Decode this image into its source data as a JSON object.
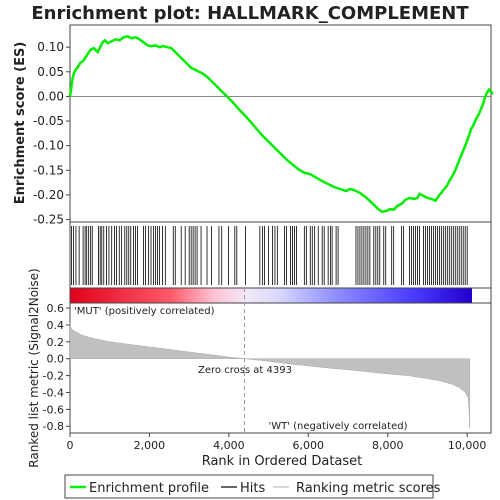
{
  "chart_data": {
    "type": "line",
    "title": "Enrichment plot: HALLMARK_COMPLEMENT",
    "panels": {
      "enrichment": {
        "ylabel": "Enrichment score (ES)",
        "xlim": [
          0,
          10600
        ],
        "ylim": [
          -0.255,
          0.145
        ],
        "yticks": [
          "0.10",
          "0.05",
          "0.00",
          "-0.05",
          "-0.10",
          "-0.15",
          "-0.20",
          "-0.25"
        ],
        "ytick_values": [
          0.1,
          0.05,
          0.0,
          -0.05,
          -0.1,
          -0.15,
          -0.2,
          -0.25
        ],
        "series_color": "#00ee00",
        "curve": [
          [
            0,
            0.0
          ],
          [
            30,
            0.015
          ],
          [
            60,
            0.035
          ],
          [
            100,
            0.048
          ],
          [
            150,
            0.055
          ],
          [
            200,
            0.06
          ],
          [
            260,
            0.068
          ],
          [
            330,
            0.072
          ],
          [
            400,
            0.08
          ],
          [
            460,
            0.088
          ],
          [
            520,
            0.095
          ],
          [
            600,
            0.098
          ],
          [
            700,
            0.09
          ],
          [
            760,
            0.1
          ],
          [
            820,
            0.11
          ],
          [
            880,
            0.114
          ],
          [
            950,
            0.108
          ],
          [
            1050,
            0.112
          ],
          [
            1150,
            0.116
          ],
          [
            1250,
            0.114
          ],
          [
            1350,
            0.12
          ],
          [
            1450,
            0.122
          ],
          [
            1550,
            0.118
          ],
          [
            1650,
            0.12
          ],
          [
            1750,
            0.116
          ],
          [
            1850,
            0.11
          ],
          [
            1950,
            0.104
          ],
          [
            2050,
            0.102
          ],
          [
            2150,
            0.104
          ],
          [
            2250,
            0.1
          ],
          [
            2350,
            0.102
          ],
          [
            2450,
            0.1
          ],
          [
            2550,
            0.098
          ],
          [
            2650,
            0.09
          ],
          [
            2750,
            0.082
          ],
          [
            2850,
            0.074
          ],
          [
            2950,
            0.066
          ],
          [
            3050,
            0.058
          ],
          [
            3150,
            0.054
          ],
          [
            3250,
            0.05
          ],
          [
            3350,
            0.046
          ],
          [
            3450,
            0.04
          ],
          [
            3550,
            0.032
          ],
          [
            3650,
            0.024
          ],
          [
            3750,
            0.016
          ],
          [
            3850,
            0.008
          ],
          [
            3950,
            0.0
          ],
          [
            4100,
            -0.012
          ],
          [
            4250,
            -0.026
          ],
          [
            4393,
            -0.038
          ],
          [
            4550,
            -0.052
          ],
          [
            4700,
            -0.066
          ],
          [
            4850,
            -0.08
          ],
          [
            5000,
            -0.092
          ],
          [
            5150,
            -0.104
          ],
          [
            5300,
            -0.116
          ],
          [
            5450,
            -0.128
          ],
          [
            5600,
            -0.138
          ],
          [
            5750,
            -0.148
          ],
          [
            5900,
            -0.155
          ],
          [
            6050,
            -0.158
          ],
          [
            6200,
            -0.165
          ],
          [
            6350,
            -0.172
          ],
          [
            6500,
            -0.178
          ],
          [
            6650,
            -0.184
          ],
          [
            6800,
            -0.188
          ],
          [
            6950,
            -0.192
          ],
          [
            7050,
            -0.188
          ],
          [
            7150,
            -0.19
          ],
          [
            7300,
            -0.196
          ],
          [
            7450,
            -0.205
          ],
          [
            7600,
            -0.216
          ],
          [
            7750,
            -0.228
          ],
          [
            7850,
            -0.234
          ],
          [
            7950,
            -0.233
          ],
          [
            8050,
            -0.229
          ],
          [
            8150,
            -0.23
          ],
          [
            8250,
            -0.222
          ],
          [
            8350,
            -0.218
          ],
          [
            8450,
            -0.21
          ],
          [
            8550,
            -0.206
          ],
          [
            8650,
            -0.208
          ],
          [
            8750,
            -0.206
          ],
          [
            8800,
            -0.198
          ],
          [
            8900,
            -0.202
          ],
          [
            9000,
            -0.206
          ],
          [
            9100,
            -0.208
          ],
          [
            9200,
            -0.212
          ],
          [
            9250,
            -0.206
          ],
          [
            9300,
            -0.2
          ],
          [
            9350,
            -0.196
          ],
          [
            9400,
            -0.19
          ],
          [
            9450,
            -0.186
          ],
          [
            9500,
            -0.18
          ],
          [
            9550,
            -0.172
          ],
          [
            9600,
            -0.165
          ],
          [
            9650,
            -0.158
          ],
          [
            9700,
            -0.15
          ],
          [
            9750,
            -0.14
          ],
          [
            9800,
            -0.13
          ],
          [
            9850,
            -0.12
          ],
          [
            9900,
            -0.11
          ],
          [
            9950,
            -0.1
          ],
          [
            10000,
            -0.09
          ],
          [
            10050,
            -0.078
          ],
          [
            10100,
            -0.066
          ],
          [
            10150,
            -0.06
          ],
          [
            10200,
            -0.05
          ],
          [
            10250,
            -0.042
          ],
          [
            10300,
            -0.035
          ],
          [
            10350,
            -0.025
          ],
          [
            10400,
            -0.015
          ],
          [
            10450,
            -0.002
          ],
          [
            10500,
            0.008
          ],
          [
            10550,
            0.014
          ],
          [
            10650,
            0.005
          ]
        ]
      },
      "hits": {
        "positions": [
          40,
          90,
          150,
          230,
          330,
          380,
          420,
          470,
          520,
          560,
          720,
          760,
          800,
          850,
          920,
          980,
          1050,
          1120,
          1170,
          1240,
          1300,
          1380,
          1430,
          1480,
          1530,
          1600,
          1650,
          1700,
          1850,
          1900,
          1980,
          2040,
          2100,
          2150,
          2200,
          2250,
          2330,
          2400,
          2600,
          2650,
          2800,
          2900,
          3000,
          3050,
          3100,
          3150,
          3200,
          3300,
          3450,
          3560,
          3750,
          3820,
          3990,
          4150,
          4200,
          4420,
          4780,
          4850,
          4900,
          5000,
          5100,
          5160,
          5220,
          5400,
          5450,
          5550,
          5600,
          5650,
          5700,
          5900,
          5950,
          6050,
          6100,
          6160,
          6250,
          6350,
          6400,
          6500,
          6560,
          6600,
          6700,
          6750,
          7200,
          7250,
          7300,
          7350,
          7400,
          7450,
          7500,
          7550,
          7650,
          7700,
          7750,
          7800,
          7900,
          7950,
          8100,
          8150,
          8350,
          8400,
          8550,
          8600,
          8650,
          8700,
          8750,
          8800,
          8900,
          8950,
          9000,
          9050,
          9100,
          9150,
          9200,
          9250,
          9300,
          9350,
          9400,
          9450,
          9500,
          9550,
          9600,
          9650,
          9700,
          9750,
          9800,
          9850,
          9900,
          9950,
          10000
        ]
      },
      "ranked_metric": {
        "ylabel": "Ranked list metric (Signal2Noise)",
        "xlabel": "Rank in Ordered Dataset",
        "xlim": [
          0,
          10600
        ],
        "ylim": [
          -0.88,
          0.66
        ],
        "yticks": [
          "0.6",
          "0.4",
          "0.2",
          "0.0",
          "-0.2",
          "-0.4",
          "-0.6",
          "-0.8"
        ],
        "ytick_values": [
          0.6,
          0.4,
          0.2,
          0.0,
          -0.2,
          -0.4,
          -0.6,
          -0.8
        ],
        "xticks": [
          "0",
          "2,000",
          "4,000",
          "6,000",
          "8,000",
          "10,000"
        ],
        "xtick_values": [
          0,
          2000,
          4000,
          6000,
          8000,
          10000
        ],
        "curve": [
          [
            0,
            0.42
          ],
          [
            30,
            0.36
          ],
          [
            100,
            0.33
          ],
          [
            300,
            0.28
          ],
          [
            600,
            0.24
          ],
          [
            1000,
            0.2
          ],
          [
            1500,
            0.17
          ],
          [
            2000,
            0.14
          ],
          [
            2500,
            0.11
          ],
          [
            3000,
            0.08
          ],
          [
            3500,
            0.05
          ],
          [
            4000,
            0.02
          ],
          [
            4393,
            0.0
          ],
          [
            5000,
            -0.03
          ],
          [
            5500,
            -0.06
          ],
          [
            6000,
            -0.085
          ],
          [
            6500,
            -0.11
          ],
          [
            7000,
            -0.13
          ],
          [
            7500,
            -0.155
          ],
          [
            8000,
            -0.18
          ],
          [
            8500,
            -0.2
          ],
          [
            9000,
            -0.235
          ],
          [
            9300,
            -0.26
          ],
          [
            9600,
            -0.3
          ],
          [
            9800,
            -0.34
          ],
          [
            9950,
            -0.4
          ],
          [
            10020,
            -0.46
          ],
          [
            10040,
            -0.55
          ],
          [
            10055,
            -0.7
          ],
          [
            10060,
            -0.82
          ],
          [
            10065,
            -0.82
          ]
        ],
        "zero_cross": 4393,
        "annotations": {
          "pos": "'MUT' (positively correlated)",
          "neg": "'WT' (negatively correlated)",
          "zero": "Zero cross at 4393"
        }
      }
    },
    "legend": [
      {
        "label": "Enrichment profile",
        "color": "#00ee00"
      },
      {
        "label": "Hits",
        "color": "#000000"
      },
      {
        "label": "Ranking metric scores",
        "color": "#bbbbbb"
      }
    ]
  }
}
